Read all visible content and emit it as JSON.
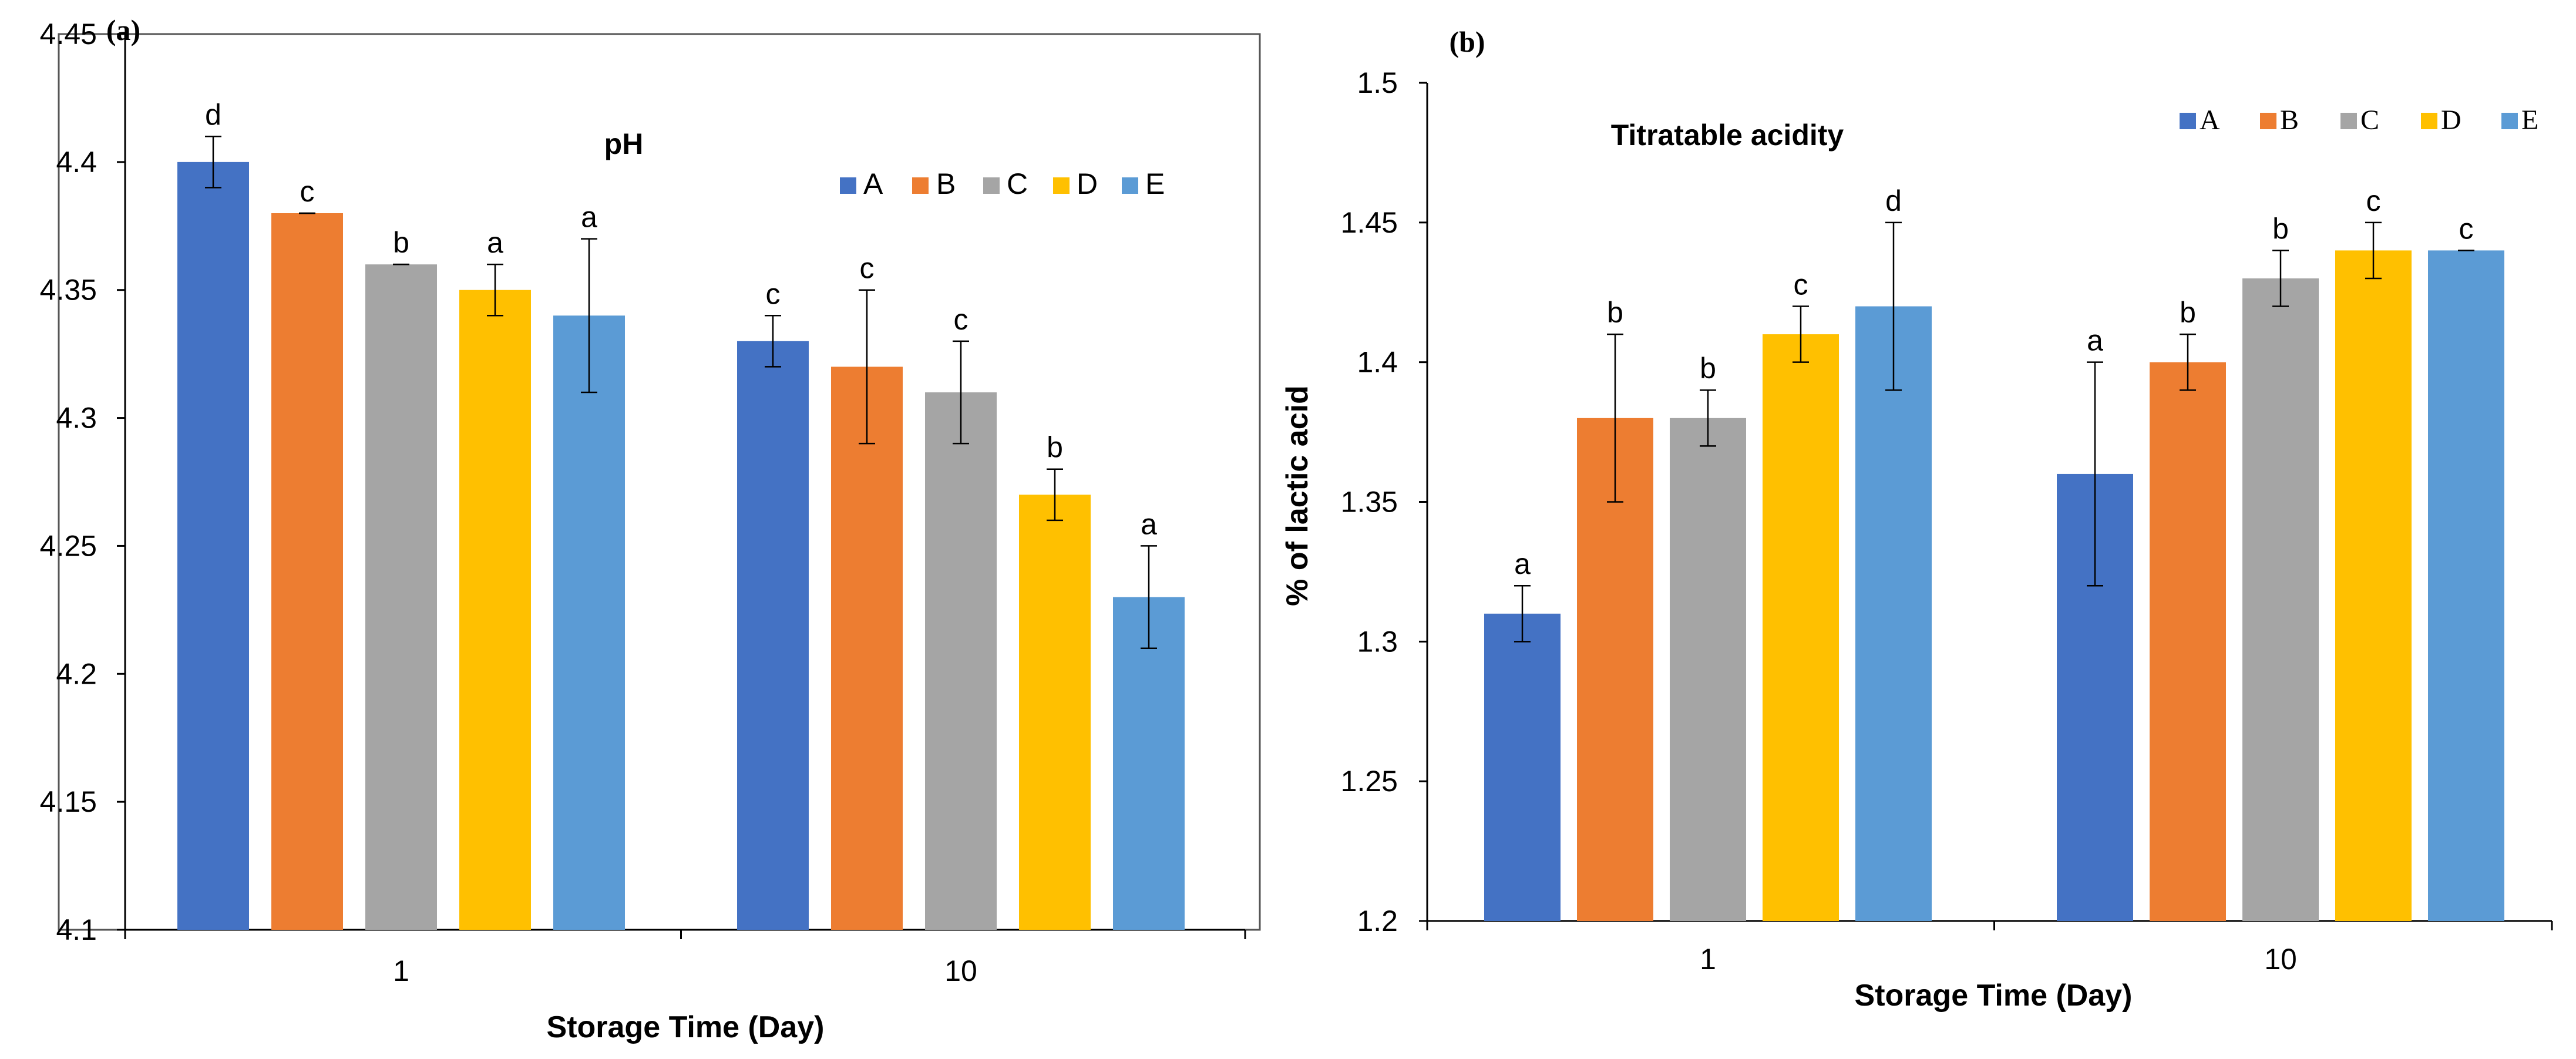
{
  "colors": {
    "A": "#4472C4",
    "B": "#ED7D31",
    "C": "#A5A5A5",
    "D": "#FFC000",
    "E": "#5B9BD5"
  },
  "chart_data": [
    {
      "panel": "(a)",
      "type": "bar",
      "title": "pH",
      "xlabel": "Storage Time (Day)",
      "ylabel": "",
      "categories": [
        "1",
        "10"
      ],
      "ylim": [
        4.1,
        4.45
      ],
      "yticks": [
        "4.1",
        "4.15",
        "4.2",
        "4.25",
        "4.3",
        "4.35",
        "4.4",
        "4.45"
      ],
      "legend_position": "top-right",
      "series": [
        {
          "name": "A",
          "values": [
            4.4,
            4.33
          ],
          "errors": [
            0.01,
            0.01
          ],
          "labels": [
            "d",
            "c"
          ]
        },
        {
          "name": "B",
          "values": [
            4.38,
            4.32
          ],
          "errors": [
            0.0,
            0.03
          ],
          "labels": [
            "c",
            "c"
          ]
        },
        {
          "name": "C",
          "values": [
            4.36,
            4.31
          ],
          "errors": [
            0.0,
            0.02
          ],
          "labels": [
            "b",
            "c"
          ]
        },
        {
          "name": "D",
          "values": [
            4.35,
            4.27
          ],
          "errors": [
            0.01,
            0.01
          ],
          "labels": [
            "a",
            "b"
          ]
        },
        {
          "name": "E",
          "values": [
            4.34,
            4.23
          ],
          "errors": [
            0.03,
            0.02
          ],
          "labels": [
            "a",
            "a"
          ]
        }
      ]
    },
    {
      "panel": "(b)",
      "type": "bar",
      "title": "Titratable acidity",
      "xlabel": "Storage Time (Day)",
      "ylabel": "% of lactic acid",
      "categories": [
        "1",
        "10"
      ],
      "ylim": [
        1.2,
        1.5
      ],
      "yticks": [
        "1.2",
        "1.25",
        "1.3",
        "1.35",
        "1.4",
        "1.45",
        "1.5"
      ],
      "legend_position": "top-right",
      "series": [
        {
          "name": "A",
          "values": [
            1.31,
            1.36
          ],
          "errors": [
            0.01,
            0.04
          ],
          "labels": [
            "a",
            "a"
          ]
        },
        {
          "name": "B",
          "values": [
            1.38,
            1.4
          ],
          "errors": [
            0.03,
            0.01
          ],
          "labels": [
            "b",
            "b"
          ]
        },
        {
          "name": "C",
          "values": [
            1.38,
            1.43
          ],
          "errors": [
            0.01,
            0.01
          ],
          "labels": [
            "b",
            "b"
          ]
        },
        {
          "name": "D",
          "values": [
            1.41,
            1.44
          ],
          "errors": [
            0.01,
            0.01
          ],
          "labels": [
            "c",
            "c"
          ]
        },
        {
          "name": "E",
          "values": [
            1.42,
            1.44
          ],
          "errors": [
            0.03,
            0.0
          ],
          "labels": [
            "d",
            "c"
          ]
        }
      ]
    }
  ]
}
